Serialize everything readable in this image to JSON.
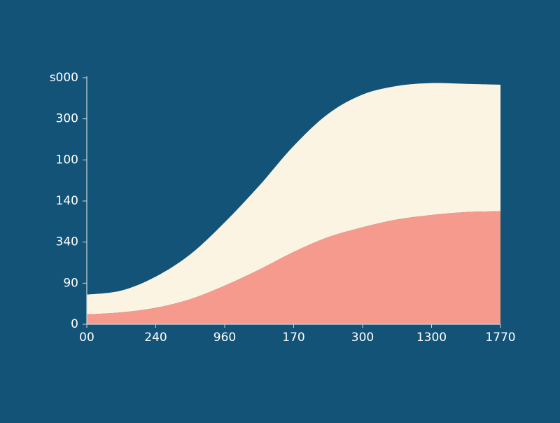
{
  "page": {
    "background": "#135377"
  },
  "chart_data": {
    "type": "area",
    "stacked": true,
    "x_ticks": [
      "00",
      "240",
      "960",
      "170",
      "300",
      "1300",
      "1770"
    ],
    "y_ticks": [
      "0",
      "90",
      "340",
      "140",
      "100",
      "300",
      "s000"
    ],
    "ylim": [
      0,
      6
    ],
    "grid": false,
    "legend": "none",
    "x": [
      0,
      0.5,
      1,
      1.5,
      2,
      2.5,
      3,
      3.5,
      4,
      4.5,
      5,
      5.5,
      6
    ],
    "series": [
      {
        "color": "#f59a8c",
        "values": [
          0.24,
          0.29,
          0.4,
          0.61,
          0.94,
          1.33,
          1.76,
          2.12,
          2.36,
          2.55,
          2.66,
          2.73,
          2.75
        ]
      },
      {
        "color": "#fbf4e3",
        "values": [
          0.48,
          0.53,
          0.76,
          1.09,
          1.54,
          2.04,
          2.58,
          3.0,
          3.23,
          3.25,
          3.21,
          3.12,
          3.08
        ]
      }
    ],
    "axis_color": "#c9d6de"
  }
}
